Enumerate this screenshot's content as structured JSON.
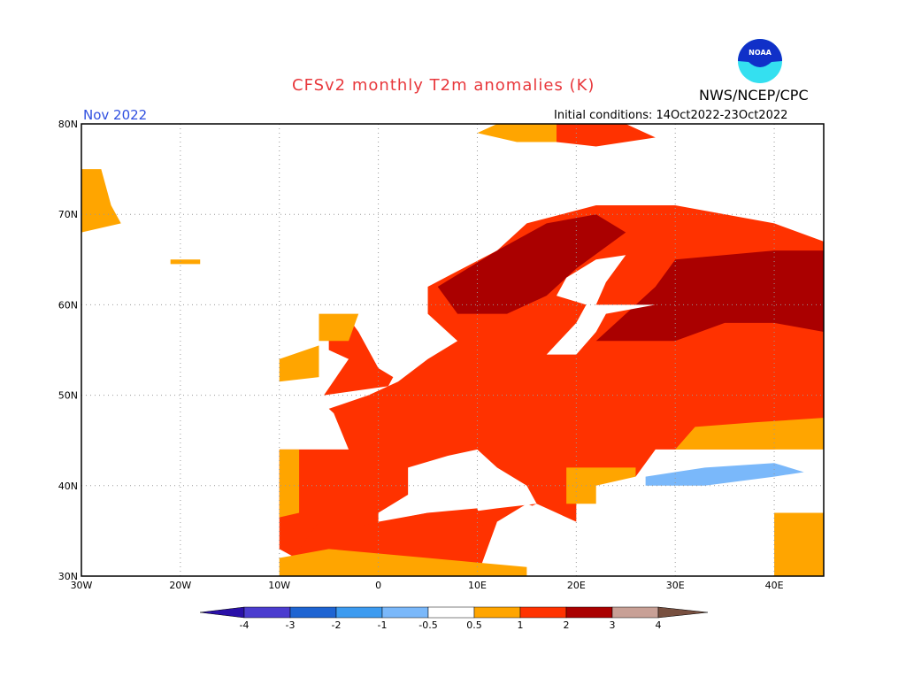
{
  "title": "CFSv2 monthly T2m anomalies (K)",
  "organization": "NWS/NCEP/CPC",
  "logo_text": "NOAA",
  "valid_month": "Nov 2022",
  "initial_conditions": "Initial conditions: 14Oct2022-23Oct2022",
  "map": {
    "projection": "lat-lon",
    "lon_range": [
      -30,
      45
    ],
    "lat_range": [
      30,
      80
    ],
    "lon_labels": [
      "30W",
      "20W",
      "10W",
      "0",
      "10E",
      "20E",
      "30E",
      "40E"
    ],
    "lat_labels": [
      "30N",
      "40N",
      "50N",
      "60N",
      "70N",
      "80N"
    ],
    "grid": "dotted"
  },
  "colorbar": {
    "labels": [
      "-4",
      "-3",
      "-2",
      "-1",
      "-0.5",
      "0.5",
      "1",
      "2",
      "3",
      "4"
    ],
    "colors": [
      "#2a10a8",
      "#4b3ccf",
      "#1e64d2",
      "#3c9bf0",
      "#7ab8fa",
      "#ffffff",
      "#ffa500",
      "#ff3200",
      "#aa0000",
      "#c8a096",
      "#785040"
    ]
  }
}
